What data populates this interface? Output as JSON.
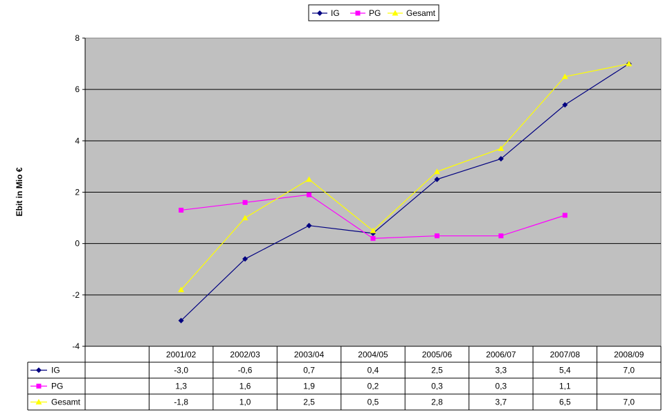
{
  "chart_data": {
    "type": "line",
    "title": "",
    "xlabel": "",
    "ylabel": "Ebit in Mio €",
    "ylim": [
      -4,
      8
    ],
    "yticks": [
      -4,
      -2,
      0,
      2,
      4,
      6,
      8
    ],
    "ytick_labels": [
      "-4",
      "-2",
      "0",
      "2",
      "4",
      "6",
      "8"
    ],
    "grid": true,
    "legend_position": "top-center",
    "plot_background": "#c0c0c0",
    "categories": [
      "2001/02",
      "2002/03",
      "2003/04",
      "2004/05",
      "2005/06",
      "2006/07",
      "2007/08",
      "2008/09"
    ],
    "series": [
      {
        "name": "IG",
        "color": "#000080",
        "marker": "diamond",
        "values": [
          -3.0,
          -0.6,
          0.7,
          0.4,
          2.5,
          3.3,
          5.4,
          7.0
        ],
        "labels": [
          "-3,0",
          "-0,6",
          "0,7",
          "0,4",
          "2,5",
          "3,3",
          "5,4",
          "7,0"
        ]
      },
      {
        "name": "PG",
        "color": "#ff00ff",
        "marker": "square",
        "values": [
          1.3,
          1.6,
          1.9,
          0.2,
          0.3,
          0.3,
          1.1,
          null
        ],
        "labels": [
          "1,3",
          "1,6",
          "1,9",
          "0,2",
          "0,3",
          "0,3",
          "1,1",
          ""
        ]
      },
      {
        "name": "Gesamt",
        "color": "#ffff00",
        "marker": "triangle",
        "values": [
          -1.8,
          1.0,
          2.5,
          0.5,
          2.8,
          3.7,
          6.5,
          7.0
        ],
        "labels": [
          "-1,8",
          "1,0",
          "2,5",
          "0,5",
          "2,8",
          "3,7",
          "6,5",
          "7,0"
        ]
      }
    ]
  }
}
